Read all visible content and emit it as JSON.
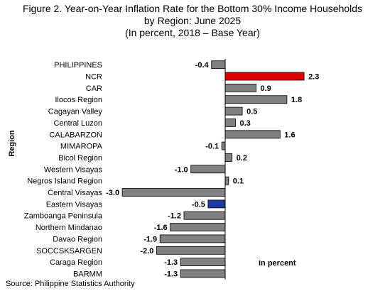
{
  "chart_data": {
    "type": "bar",
    "orientation": "horizontal",
    "title": [
      "Figure 2. Year-on-Year Inflation Rate for the Bottom 30% Income Households",
      "by Region: June 2025",
      "(In percent, 2018 – Base Year)"
    ],
    "ylabel": "Region",
    "xlabel": "in percent",
    "xlim": [
      -3.5,
      2.7
    ],
    "grid": false,
    "categories": [
      "PHILIPPINES",
      "NCR",
      "CAR",
      "Ilocos Region",
      "Cagayan Valley",
      "Central Luzon",
      "CALABARZON",
      "MIMAROPA",
      "Bicol Region",
      "Western Visayas",
      "Negros Island Region",
      "Central Visayas",
      "Eastern Visayas",
      "Zamboanga Peninsula",
      "Northern Mindanao",
      "Davao Region",
      "SOCCSKSARGEN",
      "Caraga Region",
      "BARMM"
    ],
    "values": [
      -0.4,
      2.3,
      0.9,
      1.8,
      0.5,
      0.3,
      1.6,
      -0.1,
      0.2,
      -1.0,
      0.1,
      -3.0,
      -0.5,
      -1.2,
      -1.6,
      -1.9,
      -2.0,
      -1.3,
      -1.3
    ],
    "value_labels": [
      "-0.4",
      "2.3",
      "0.9",
      "1.8",
      "0.5",
      "0.3",
      "1.6",
      "-0.1",
      "0.2",
      "-1.0",
      "0.1",
      "-3.0",
      "-0.5",
      "-1.2",
      "-1.6",
      "-1.9",
      "-2.0",
      "-1.3",
      "-1.3"
    ],
    "colors": {
      "default": "#808080",
      "NCR": "#e00000",
      "Eastern Visayas": "#1f3aa0",
      "bar_outline": "#000000"
    }
  },
  "source": "Source: Philippine Statistics Authority"
}
